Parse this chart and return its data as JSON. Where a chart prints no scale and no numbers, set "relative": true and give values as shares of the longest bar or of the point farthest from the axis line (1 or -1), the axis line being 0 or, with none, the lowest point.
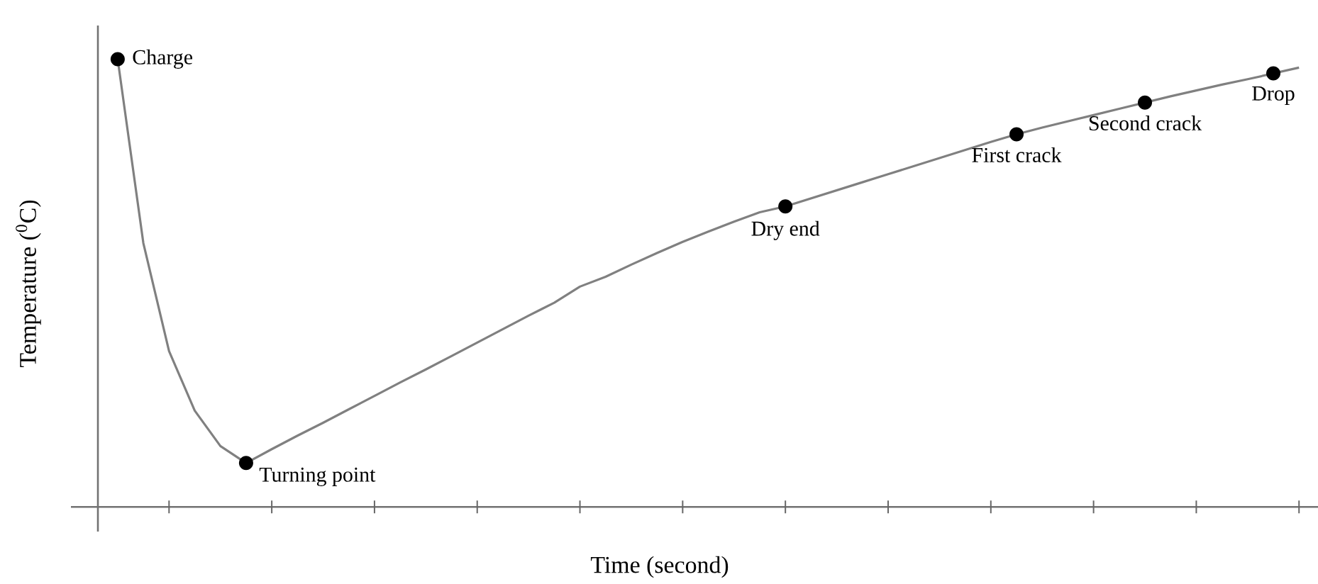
{
  "chart_data": {
    "type": "line",
    "relative": true,
    "xlabel": "Time (second)",
    "ylabel": "Temperature ($^{0}$C)",
    "categories": [
      null,
      null,
      null,
      null,
      null,
      null,
      null,
      null,
      null,
      null,
      null,
      null,
      null,
      null,
      null,
      null,
      null,
      null,
      null,
      null,
      null,
      null,
      null,
      null,
      null,
      null,
      null,
      null,
      null,
      null,
      null,
      null,
      null,
      null,
      null,
      null,
      null,
      null,
      null,
      null,
      null,
      null,
      null,
      null,
      null,
      null,
      null
    ],
    "series": [
      {
        "color": "#808080",
        "values": [
          1.0,
          0.589,
          0.348,
          0.215,
          0.136,
          0.098,
          0.129,
          0.159,
          0.188,
          0.218,
          0.248,
          0.278,
          0.307,
          0.337,
          0.367,
          0.397,
          0.427,
          0.456,
          0.492,
          0.514,
          0.541,
          0.567,
          0.592,
          0.615,
          0.637,
          0.658,
          0.671,
          0.689,
          0.707,
          0.725,
          0.743,
          0.761,
          0.779,
          0.797,
          0.815,
          0.832,
          0.847,
          0.861,
          0.875,
          0.889,
          0.903,
          0.917,
          0.93,
          0.943,
          0.955,
          0.968,
          0.981
        ]
      }
    ],
    "annotations": [
      "Charge",
      "Turning point",
      "Dry end",
      "First crack",
      "Second crack",
      "Drop"
    ]
  }
}
